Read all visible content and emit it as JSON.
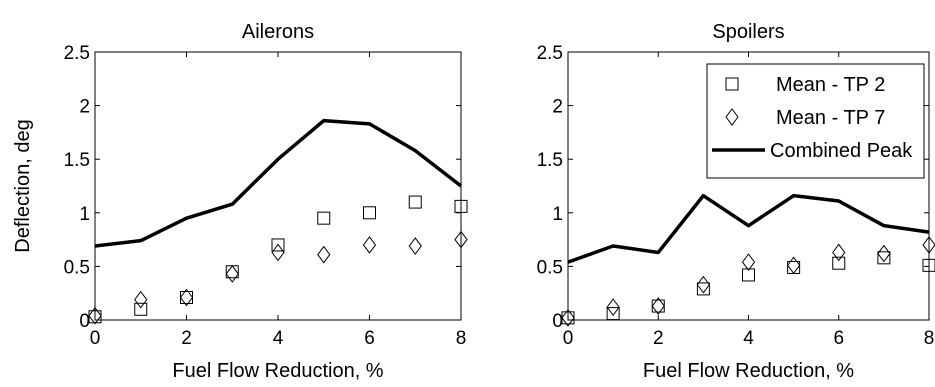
{
  "chart_data": [
    {
      "type": "line",
      "title": "Ailerons",
      "xlabel": "Fuel Flow Reduction, %",
      "ylabel": "Deflection, deg",
      "xlim": [
        0,
        8
      ],
      "ylim": [
        0,
        2.5
      ],
      "xticks": [
        "0",
        "2",
        "4",
        "6",
        "8"
      ],
      "yticks": [
        "0",
        "0.5",
        "1",
        "1.5",
        "2",
        "2.5"
      ],
      "x": [
        0,
        1,
        2,
        3,
        4,
        5,
        6,
        7,
        8
      ],
      "grid": false,
      "series": [
        {
          "name": "Mean - TP 2",
          "marker": "square",
          "values": [
            0.03,
            0.1,
            0.21,
            0.45,
            0.7,
            0.95,
            1.0,
            1.1,
            1.06
          ]
        },
        {
          "name": "Mean - TP 7",
          "marker": "diamond",
          "values": [
            0.04,
            0.19,
            0.21,
            0.43,
            0.63,
            0.61,
            0.7,
            0.69,
            0.75
          ]
        },
        {
          "name": "Combined Peak",
          "marker": "line",
          "values": [
            0.69,
            0.74,
            0.95,
            1.08,
            1.5,
            1.86,
            1.83,
            1.58,
            1.25
          ]
        }
      ]
    },
    {
      "type": "line",
      "title": "Spoilers",
      "xlabel": "Fuel Flow Reduction, %",
      "ylabel": "",
      "xlim": [
        0,
        8
      ],
      "ylim": [
        0,
        2.5
      ],
      "xticks": [
        "0",
        "2",
        "4",
        "6",
        "8"
      ],
      "yticks": [
        "0",
        "0.5",
        "1",
        "1.5",
        "2",
        "2.5"
      ],
      "x": [
        0,
        1,
        2,
        3,
        4,
        5,
        6,
        7,
        8
      ],
      "grid": false,
      "legend": "top-right",
      "series": [
        {
          "name": "Mean - TP 2",
          "marker": "square",
          "values": [
            0.02,
            0.06,
            0.13,
            0.29,
            0.42,
            0.49,
            0.53,
            0.58,
            0.51
          ]
        },
        {
          "name": "Mean - TP 7",
          "marker": "diamond",
          "values": [
            0.02,
            0.12,
            0.13,
            0.33,
            0.54,
            0.51,
            0.63,
            0.62,
            0.7
          ]
        },
        {
          "name": "Combined Peak",
          "marker": "line",
          "values": [
            0.54,
            0.69,
            0.63,
            1.16,
            0.88,
            1.16,
            1.11,
            0.88,
            0.82
          ]
        }
      ]
    }
  ]
}
